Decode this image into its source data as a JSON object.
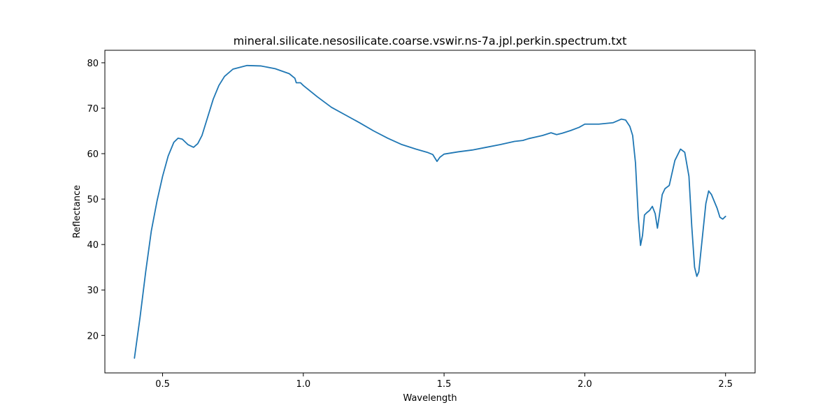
{
  "chart_data": {
    "type": "line",
    "title": "mineral.silicate.nesosilicate.coarse.vswir.ns-7a.jpl.perkin.spectrum.txt",
    "xlabel": "Wavelength",
    "ylabel": "Reflectance",
    "xlim": [
      0.295,
      2.605
    ],
    "ylim": [
      11.75,
      82.75
    ],
    "grid": false,
    "legend": "none",
    "x_ticks": [
      {
        "value": 0.5,
        "label": "0.5"
      },
      {
        "value": 1.0,
        "label": "1.0"
      },
      {
        "value": 1.5,
        "label": "1.5"
      },
      {
        "value": 2.0,
        "label": "2.0"
      },
      {
        "value": 2.5,
        "label": "2.5"
      }
    ],
    "y_ticks": [
      {
        "value": 20,
        "label": "20"
      },
      {
        "value": 30,
        "label": "30"
      },
      {
        "value": 40,
        "label": "40"
      },
      {
        "value": 50,
        "label": "50"
      },
      {
        "value": 60,
        "label": "60"
      },
      {
        "value": 70,
        "label": "70"
      },
      {
        "value": 80,
        "label": "80"
      }
    ],
    "series": [
      {
        "color": "#1f77b4",
        "points": [
          [
            0.4,
            15.0
          ],
          [
            0.42,
            24.0
          ],
          [
            0.44,
            34.0
          ],
          [
            0.46,
            43.0
          ],
          [
            0.48,
            49.5
          ],
          [
            0.5,
            55.0
          ],
          [
            0.52,
            59.5
          ],
          [
            0.54,
            62.5
          ],
          [
            0.555,
            63.4
          ],
          [
            0.57,
            63.2
          ],
          [
            0.59,
            62.0
          ],
          [
            0.61,
            61.4
          ],
          [
            0.625,
            62.2
          ],
          [
            0.64,
            64.0
          ],
          [
            0.66,
            68.0
          ],
          [
            0.68,
            72.0
          ],
          [
            0.7,
            75.0
          ],
          [
            0.72,
            77.0
          ],
          [
            0.75,
            78.6
          ],
          [
            0.8,
            79.4
          ],
          [
            0.85,
            79.3
          ],
          [
            0.9,
            78.7
          ],
          [
            0.95,
            77.6
          ],
          [
            0.97,
            76.6
          ],
          [
            0.975,
            75.6
          ],
          [
            0.99,
            75.6
          ],
          [
            1.0,
            75.0
          ],
          [
            1.05,
            72.5
          ],
          [
            1.1,
            70.2
          ],
          [
            1.15,
            68.5
          ],
          [
            1.2,
            66.8
          ],
          [
            1.25,
            65.0
          ],
          [
            1.3,
            63.4
          ],
          [
            1.35,
            62.0
          ],
          [
            1.4,
            61.0
          ],
          [
            1.44,
            60.3
          ],
          [
            1.46,
            59.8
          ],
          [
            1.475,
            58.3
          ],
          [
            1.485,
            59.2
          ],
          [
            1.5,
            59.9
          ],
          [
            1.55,
            60.4
          ],
          [
            1.6,
            60.8
          ],
          [
            1.65,
            61.4
          ],
          [
            1.7,
            62.0
          ],
          [
            1.75,
            62.7
          ],
          [
            1.78,
            62.9
          ],
          [
            1.8,
            63.3
          ],
          [
            1.85,
            64.0
          ],
          [
            1.88,
            64.6
          ],
          [
            1.9,
            64.2
          ],
          [
            1.92,
            64.5
          ],
          [
            1.95,
            65.1
          ],
          [
            1.98,
            65.8
          ],
          [
            2.0,
            66.5
          ],
          [
            2.05,
            66.5
          ],
          [
            2.1,
            66.8
          ],
          [
            2.13,
            67.6
          ],
          [
            2.145,
            67.4
          ],
          [
            2.16,
            66.0
          ],
          [
            2.17,
            64.0
          ],
          [
            2.18,
            58.0
          ],
          [
            2.19,
            46.0
          ],
          [
            2.198,
            39.8
          ],
          [
            2.205,
            42.0
          ],
          [
            2.212,
            46.5
          ],
          [
            2.22,
            47.0
          ],
          [
            2.23,
            47.5
          ],
          [
            2.24,
            48.4
          ],
          [
            2.25,
            46.8
          ],
          [
            2.258,
            43.6
          ],
          [
            2.265,
            46.5
          ],
          [
            2.275,
            51.0
          ],
          [
            2.285,
            52.3
          ],
          [
            2.3,
            53.0
          ],
          [
            2.32,
            58.5
          ],
          [
            2.34,
            61.0
          ],
          [
            2.355,
            60.3
          ],
          [
            2.37,
            55.0
          ],
          [
            2.38,
            44.0
          ],
          [
            2.39,
            35.0
          ],
          [
            2.398,
            33.0
          ],
          [
            2.405,
            34.0
          ],
          [
            2.415,
            40.0
          ],
          [
            2.43,
            49.0
          ],
          [
            2.44,
            51.8
          ],
          [
            2.45,
            51.0
          ],
          [
            2.46,
            49.5
          ],
          [
            2.47,
            48.0
          ],
          [
            2.48,
            46.0
          ],
          [
            2.49,
            45.6
          ],
          [
            2.5,
            46.2
          ]
        ]
      }
    ]
  }
}
